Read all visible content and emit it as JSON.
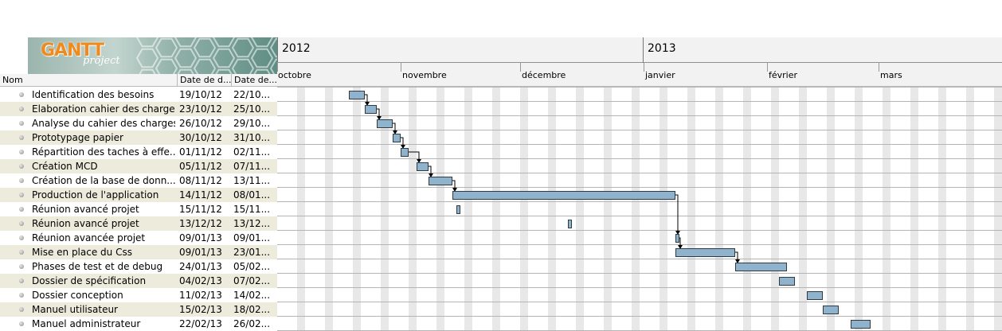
{
  "logo": {
    "title": "GANTT",
    "subtitle": "project"
  },
  "columns": {
    "name": "Nom",
    "start": "Date de d...",
    "end": "Date de..."
  },
  "timeline": {
    "years": [
      "2012",
      "2013"
    ],
    "months": [
      "octobre",
      "novembre",
      "décembre",
      "janvier",
      "février",
      "mars"
    ]
  },
  "tasks": [
    {
      "name": "Identification des besoins",
      "start": "19/10/12",
      "end": "22/10..."
    },
    {
      "name": "Elaboration cahier des charges",
      "start": "23/10/12",
      "end": "25/10..."
    },
    {
      "name": "Analyse du cahier des charges",
      "start": "26/10/12",
      "end": "29/10..."
    },
    {
      "name": "Prototypage papier",
      "start": "30/10/12",
      "end": "31/10..."
    },
    {
      "name": "Répartition des taches à effe...",
      "start": "01/11/12",
      "end": "02/11..."
    },
    {
      "name": "Création MCD",
      "start": "05/11/12",
      "end": "07/11..."
    },
    {
      "name": "Création de la base de donn...",
      "start": "08/11/12",
      "end": "13/11..."
    },
    {
      "name": "Production de l'application",
      "start": "14/11/12",
      "end": "08/01..."
    },
    {
      "name": "Réunion avancé projet",
      "start": "15/11/12",
      "end": "15/11..."
    },
    {
      "name": "Réunion avancé projet",
      "start": "13/12/12",
      "end": "13/12..."
    },
    {
      "name": "Réunion avancée projet",
      "start": "09/01/13",
      "end": "09/01..."
    },
    {
      "name": "Mise en place du Css",
      "start": "09/01/13",
      "end": "23/01..."
    },
    {
      "name": "Phases de test et de debug",
      "start": "24/01/13",
      "end": "05/02..."
    },
    {
      "name": "Dossier de spécification",
      "start": "04/02/13",
      "end": "07/02..."
    },
    {
      "name": "Dossier conception",
      "start": "11/02/13",
      "end": "14/02..."
    },
    {
      "name": "Manuel utilisateur",
      "start": "15/02/13",
      "end": "18/02..."
    },
    {
      "name": "Manuel administrateur",
      "start": "22/02/13",
      "end": "26/02..."
    }
  ],
  "colors": {
    "bar_fill": "#8fb3cc",
    "bar_border": "#2f3a42",
    "weekend": "#e8e8e8",
    "row_alt": "#ecebdc",
    "logo_text": "#f08a1c"
  },
  "icons": {
    "row_bullet": "task-bullet-icon",
    "dependency": "dependency-arrow-icon"
  }
}
